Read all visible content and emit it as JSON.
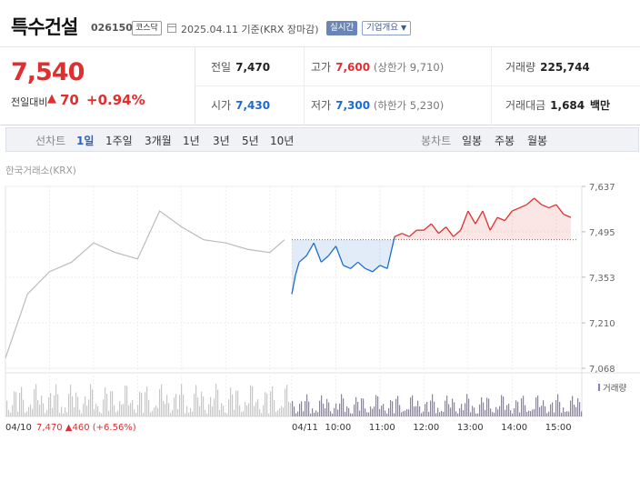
{
  "header": {
    "name": "특수건설",
    "code": "026150",
    "market": "코스닥",
    "date_text": "2025.04.11 기준(KRX 장마감)",
    "realtime_label": "실시간",
    "overview_label": "기업개요"
  },
  "summary": {
    "current_price": "7,540",
    "change_label": "전일대비",
    "change_arrow": "▲",
    "change_value": "70",
    "change_pct": "+0.94%",
    "prev_close_label": "전일",
    "prev_close": "7,470",
    "high_label": "고가",
    "high": "7,600",
    "upper_limit": "(상한가 9,710)",
    "volume_label": "거래량",
    "volume": "225,744",
    "open_label": "시가",
    "open": "7,430",
    "low_label": "저가",
    "low": "7,300",
    "lower_limit": "(하한가 5,230)",
    "amount_label": "거래대금",
    "amount": "1,684",
    "amount_unit": "백만"
  },
  "period_bar": {
    "line_label": "선차트",
    "line_periods": [
      "1일",
      "1주일",
      "3개월",
      "1년",
      "3년",
      "5년",
      "10년"
    ],
    "active": "1일",
    "candle_label": "봉차트",
    "candle_periods": [
      "일봉",
      "주봉",
      "월봉"
    ]
  },
  "exchange_label": "한국거래소(KRX)",
  "colors": {
    "up": "#e12e2e",
    "down": "#1c6bd1",
    "prev": "#bcbcbc",
    "volume_today": "#8e7cc3",
    "volume_prev": "#c8c8c8"
  },
  "chart_data": {
    "type": "line",
    "y_ticks": [
      "7,637",
      "7,495",
      "7,353",
      "7,210",
      "7,068"
    ],
    "ylim": [
      7068,
      7637
    ],
    "baseline": 7470,
    "x_ticks": [
      "04/11",
      "10:00",
      "11:00",
      "12:00",
      "13:00",
      "14:00",
      "15:00"
    ],
    "prev_day_label": "04/10",
    "prev_day_close": "7,470",
    "prev_day_arrow": "▲",
    "prev_day_change": "460",
    "prev_day_pct": "(+6.56%)",
    "volume_legend": "거래량",
    "series": [
      {
        "date": "04/10",
        "times": [
          "09:00",
          "09:30",
          "10:00",
          "10:30",
          "11:00",
          "11:30",
          "12:00",
          "12:30",
          "13:00",
          "13:30",
          "14:00",
          "14:30",
          "15:00",
          "15:20"
        ],
        "values": [
          7100,
          7300,
          7370,
          7400,
          7460,
          7430,
          7410,
          7560,
          7510,
          7470,
          7460,
          7440,
          7430,
          7470
        ]
      },
      {
        "date": "04/11",
        "times": [
          "09:00",
          "09:05",
          "09:10",
          "09:20",
          "09:30",
          "09:40",
          "09:50",
          "10:00",
          "10:10",
          "10:20",
          "10:30",
          "10:40",
          "10:50",
          "11:00",
          "11:10",
          "11:20",
          "11:30",
          "11:40",
          "11:50",
          "12:00",
          "12:10",
          "12:20",
          "12:30",
          "12:40",
          "12:50",
          "13:00",
          "13:10",
          "13:20",
          "13:30",
          "13:40",
          "13:50",
          "14:00",
          "14:10",
          "14:20",
          "14:30",
          "14:40",
          "14:50",
          "15:00",
          "15:10",
          "15:20"
        ],
        "values": [
          7300,
          7360,
          7400,
          7420,
          7460,
          7400,
          7420,
          7450,
          7390,
          7380,
          7400,
          7380,
          7370,
          7390,
          7380,
          7480,
          7490,
          7480,
          7500,
          7500,
          7520,
          7490,
          7510,
          7480,
          7500,
          7560,
          7520,
          7560,
          7500,
          7540,
          7530,
          7560,
          7570,
          7580,
          7600,
          7580,
          7570,
          7580,
          7550,
          7540
        ]
      }
    ]
  }
}
